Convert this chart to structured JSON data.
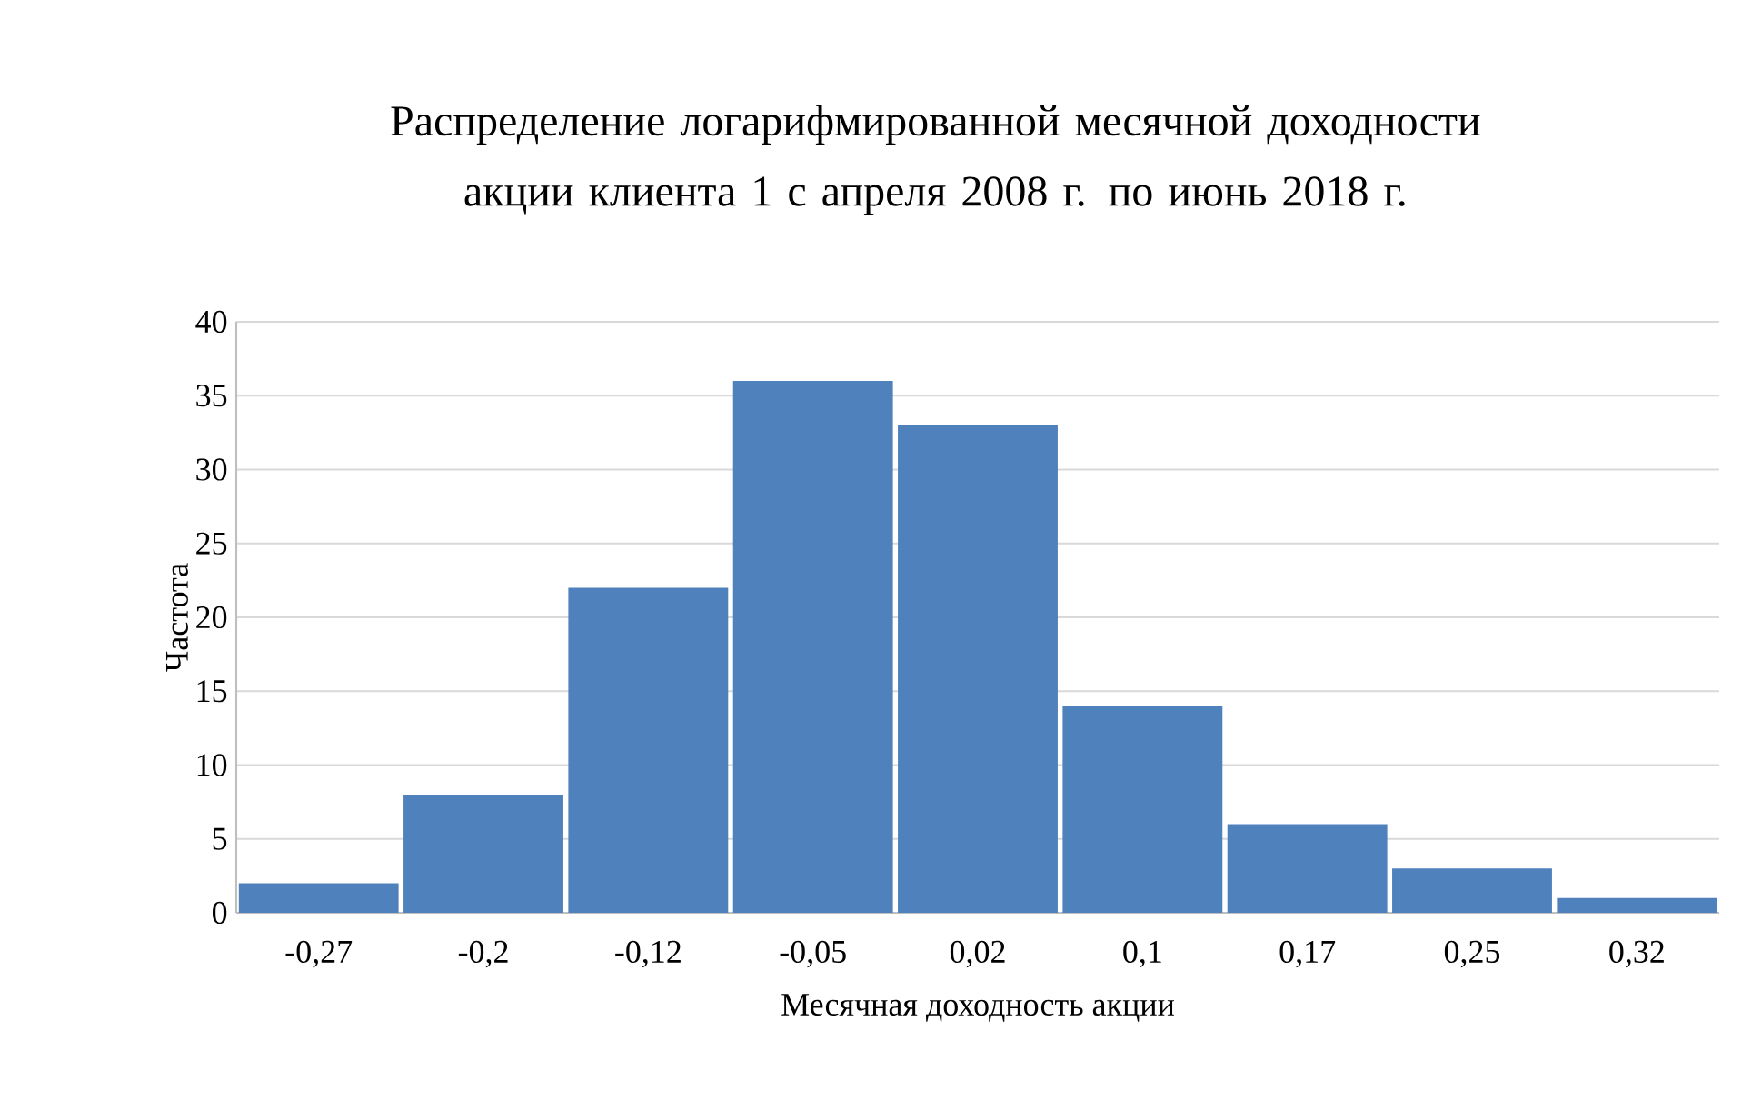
{
  "chart_data": {
    "type": "bar",
    "title": "Распределение логарифмированной месячной доходности акции клиента 1 с апреля 2008 г. по июнь 2018 г.",
    "xlabel": "Месячная доходность акции",
    "ylabel": "Частота",
    "categories": [
      "-0,27",
      "-0,2",
      "-0,12",
      "-0,05",
      "0,02",
      "0,1",
      "0,17",
      "0,25",
      "0,32"
    ],
    "values": [
      2,
      8,
      22,
      36,
      33,
      14,
      6,
      3,
      1
    ],
    "color": "#4f81bd",
    "ylim": [
      0,
      40
    ],
    "yticks": [
      0,
      5,
      10,
      15,
      20,
      25,
      30,
      35,
      40
    ],
    "grid": "y"
  }
}
